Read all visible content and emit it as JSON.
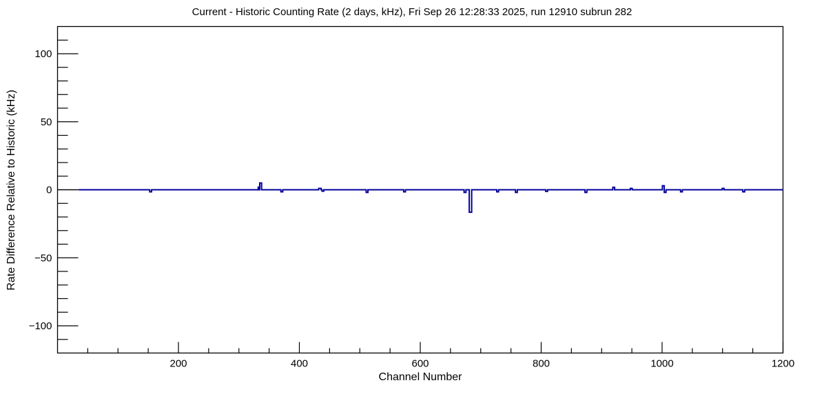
{
  "chart_data": {
    "type": "line",
    "title": "Current - Historic Counting Rate (2 days, kHz), Fri Sep 26 12:28:33 2025, run 12910 subrun 282",
    "xlabel": "Channel Number",
    "ylabel": "Rate Difference Relative to Historic (kHz)",
    "xlim": [
      0,
      1200
    ],
    "ylim": [
      -120,
      120
    ],
    "x_major_ticks": [
      200,
      400,
      600,
      800,
      1000,
      1200
    ],
    "x_tick_labels": [
      "200",
      "400",
      "600",
      "800",
      "1000",
      "1200"
    ],
    "x_minor_step": 50,
    "y_major_ticks": [
      100,
      50,
      0,
      -50,
      -100
    ],
    "y_tick_labels": [
      "100",
      "50",
      "0",
      "−50",
      "−100"
    ],
    "y_minor_step": 10,
    "grid": false,
    "legend": null,
    "line_color": "#00009b",
    "frame_color": "#000000",
    "baseline_value": 0,
    "data_start_channel": 35,
    "zero_tick_segment": {
      "from": 0,
      "to": 35,
      "color": "#000000"
    },
    "spikes": [
      {
        "channel": 154,
        "width": 3,
        "value": -1.5
      },
      {
        "channel": 333,
        "width": 2,
        "value": 2
      },
      {
        "channel": 336,
        "width": 3,
        "value": 5
      },
      {
        "channel": 371,
        "width": 3,
        "value": -1.5
      },
      {
        "channel": 434,
        "width": 4,
        "value": 1
      },
      {
        "channel": 439,
        "width": 3,
        "value": -1
      },
      {
        "channel": 512,
        "width": 3,
        "value": -2
      },
      {
        "channel": 574,
        "width": 3,
        "value": -1.5
      },
      {
        "channel": 674,
        "width": 3,
        "value": -2
      },
      {
        "channel": 683,
        "width": 4,
        "value": -16.5
      },
      {
        "channel": 728,
        "width": 3,
        "value": -1.5
      },
      {
        "channel": 759,
        "width": 3,
        "value": -2
      },
      {
        "channel": 809,
        "width": 3,
        "value": -1.2
      },
      {
        "channel": 874,
        "width": 3,
        "value": -2
      },
      {
        "channel": 920,
        "width": 3,
        "value": 1.8
      },
      {
        "channel": 949,
        "width": 3,
        "value": 1
      },
      {
        "channel": 1002,
        "width": 3,
        "value": 3
      },
      {
        "channel": 1005,
        "width": 3,
        "value": -2
      },
      {
        "channel": 1032,
        "width": 3,
        "value": -1.5
      },
      {
        "channel": 1101,
        "width": 3,
        "value": 1
      },
      {
        "channel": 1135,
        "width": 3,
        "value": -1.5
      }
    ]
  }
}
